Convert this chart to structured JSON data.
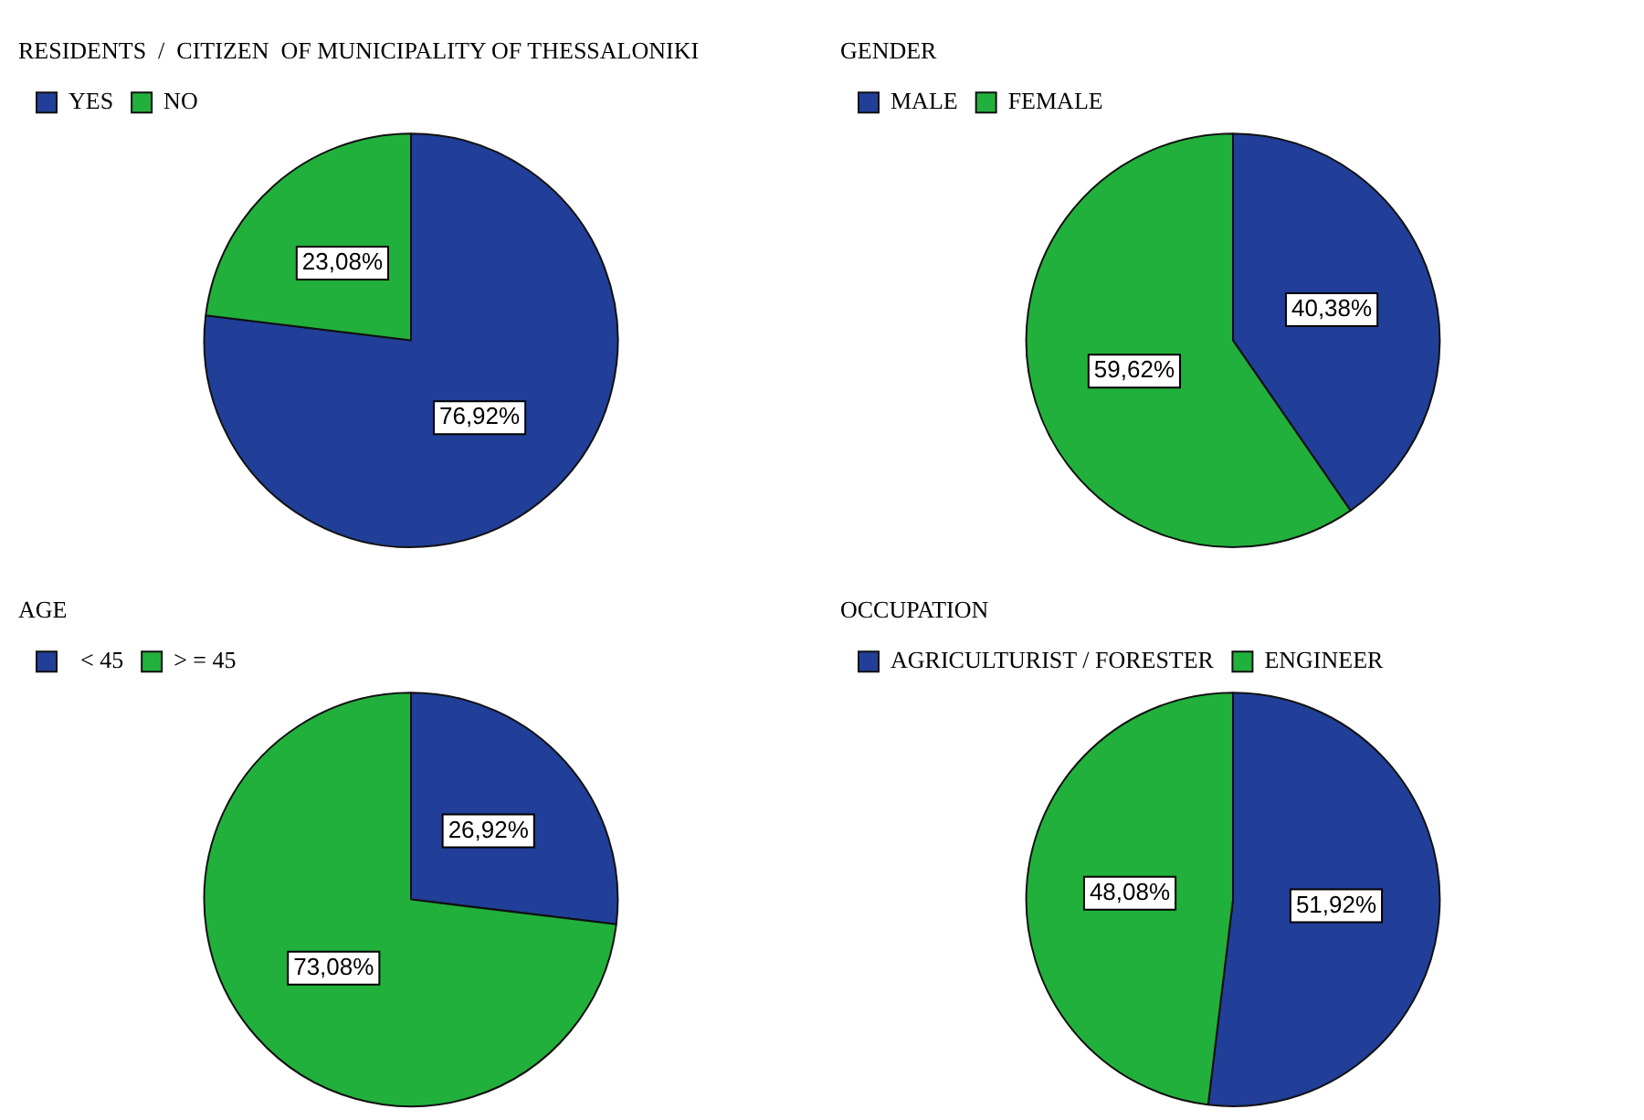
{
  "chart_data": [
    {
      "type": "pie",
      "legend_title": "RESIDENTS  /  CITIZEN  OF MUNICIPALITY OF THESSALONIKI",
      "categories": [
        "YES",
        "NO"
      ],
      "values": [
        76.92,
        23.08
      ],
      "value_labels": [
        "76,92%",
        "23,08%"
      ],
      "colors": [
        "#213f98",
        "#22b03c"
      ],
      "legend": "top left"
    },
    {
      "type": "pie",
      "legend_title": "GENDER",
      "categories": [
        "MALE",
        "FEMALE"
      ],
      "values": [
        40.38,
        59.62
      ],
      "value_labels": [
        "40,38%",
        "59,62%"
      ],
      "colors": [
        "#213f98",
        "#22b03c"
      ],
      "legend": "top left"
    },
    {
      "type": "pie",
      "legend_title": "AGE",
      "categories": [
        "  < 45",
        "> = 45"
      ],
      "values": [
        26.92,
        73.08
      ],
      "value_labels": [
        "26,92%",
        "73,08%"
      ],
      "colors": [
        "#213f98",
        "#22b03c"
      ],
      "legend": "top left"
    },
    {
      "type": "pie",
      "legend_title": "OCCUPATION",
      "categories": [
        "AGRICULTURIST / FORESTER",
        "ENGINEER"
      ],
      "values": [
        51.92,
        48.08
      ],
      "value_labels": [
        "51,92%",
        "48,08%"
      ],
      "colors": [
        "#213f98",
        "#22b03c"
      ],
      "legend": "top left"
    }
  ]
}
